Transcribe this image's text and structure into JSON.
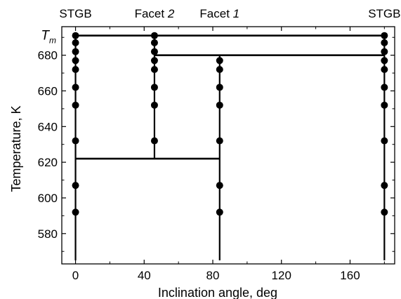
{
  "chart_data": {
    "type": "scatter",
    "title": "",
    "xlabel": "Inclination angle, deg",
    "ylabel": "Temperature, K",
    "xlim": [
      -8,
      186
    ],
    "ylim": [
      563,
      696
    ],
    "x_ticks": [
      0,
      40,
      80,
      120,
      160
    ],
    "x_minor_ticks": [
      20,
      60,
      100,
      140,
      180
    ],
    "y_ticks": [
      580,
      600,
      620,
      640,
      660,
      680
    ],
    "y_minor_ticks": [
      570,
      590,
      610,
      630,
      650,
      670,
      690
    ],
    "tm_tick": {
      "label_main": "T",
      "label_sub": "m",
      "value": 691
    },
    "top_labels": [
      {
        "text": "STGB",
        "x": 0
      },
      {
        "text": "Facet 2",
        "x": 46
      },
      {
        "text": "Facet 1",
        "x": 84
      },
      {
        "text": "STGB",
        "x": 180
      }
    ],
    "vertical_lines": [
      {
        "x": 0,
        "y_from": 565,
        "y_to": 691
      },
      {
        "x": 46,
        "y_from": 622,
        "y_to": 691
      },
      {
        "x": 84,
        "y_from": 565,
        "y_to": 680
      },
      {
        "x": 180,
        "y_from": 565,
        "y_to": 691
      }
    ],
    "horizontal_lines": [
      {
        "y": 691,
        "x_from": 0,
        "x_to": 180
      },
      {
        "y": 680,
        "x_from": 46,
        "x_to": 180
      },
      {
        "y": 622,
        "x_from": 0,
        "x_to": 84
      }
    ],
    "series": [
      {
        "x": 0,
        "y": [
          691,
          687,
          682,
          677,
          672,
          662,
          652,
          632,
          607,
          592
        ]
      },
      {
        "x": 46,
        "y": [
          691,
          687,
          682,
          677,
          672,
          662,
          652,
          632
        ]
      },
      {
        "x": 84,
        "y": [
          677,
          672,
          662,
          652,
          632,
          607,
          592
        ]
      },
      {
        "x": 180,
        "y": [
          691,
          687,
          682,
          677,
          672,
          662,
          652,
          632,
          607,
          592
        ]
      }
    ],
    "grid": false
  }
}
